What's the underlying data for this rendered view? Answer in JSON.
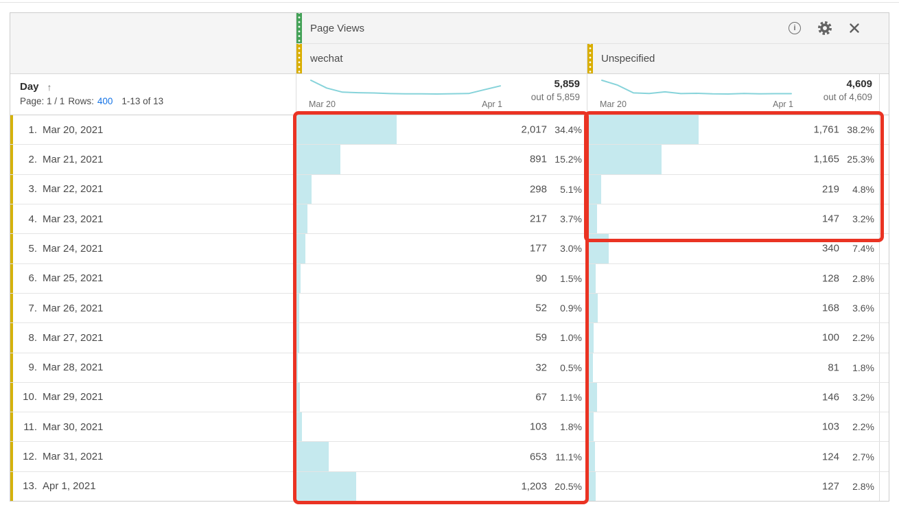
{
  "metric_header": {
    "label": "Page Views"
  },
  "toolbar": {
    "info_glyph": "i"
  },
  "dimension_header": {
    "label": "Day",
    "sort_glyph": "↑",
    "page_label": "Page: 1 / 1",
    "rows_label": "Rows:",
    "rows_value": "400",
    "range_label": "1-13 of 13"
  },
  "columns": [
    {
      "label": "wechat",
      "total": "5,859",
      "out_of_label": "out of 5,859",
      "axis_start": "Mar 20",
      "axis_end": "Apr 1",
      "spark_values": [
        2017,
        891,
        298,
        217,
        177,
        90,
        52,
        59,
        32,
        67,
        103,
        653,
        1203
      ]
    },
    {
      "label": "Unspecified",
      "total": "4,609",
      "out_of_label": "out of 4,609",
      "axis_start": "Mar 20",
      "axis_end": "Apr 1",
      "spark_values": [
        1761,
        1165,
        219,
        147,
        340,
        128,
        168,
        100,
        81,
        146,
        103,
        124,
        127
      ]
    }
  ],
  "rows": [
    {
      "rank": "1.",
      "day": "Mar 20, 2021",
      "cells": [
        {
          "value": "2,017",
          "pct": "34.4%",
          "pct_num": 34.4
        },
        {
          "value": "1,761",
          "pct": "38.2%",
          "pct_num": 38.2
        }
      ]
    },
    {
      "rank": "2.",
      "day": "Mar 21, 2021",
      "cells": [
        {
          "value": "891",
          "pct": "15.2%",
          "pct_num": 15.2
        },
        {
          "value": "1,165",
          "pct": "25.3%",
          "pct_num": 25.3
        }
      ]
    },
    {
      "rank": "3.",
      "day": "Mar 22, 2021",
      "cells": [
        {
          "value": "298",
          "pct": "5.1%",
          "pct_num": 5.1
        },
        {
          "value": "219",
          "pct": "4.8%",
          "pct_num": 4.8
        }
      ]
    },
    {
      "rank": "4.",
      "day": "Mar 23, 2021",
      "cells": [
        {
          "value": "217",
          "pct": "3.7%",
          "pct_num": 3.7
        },
        {
          "value": "147",
          "pct": "3.2%",
          "pct_num": 3.2
        }
      ]
    },
    {
      "rank": "5.",
      "day": "Mar 24, 2021",
      "cells": [
        {
          "value": "177",
          "pct": "3.0%",
          "pct_num": 3.0
        },
        {
          "value": "340",
          "pct": "7.4%",
          "pct_num": 7.4
        }
      ]
    },
    {
      "rank": "6.",
      "day": "Mar 25, 2021",
      "cells": [
        {
          "value": "90",
          "pct": "1.5%",
          "pct_num": 1.5
        },
        {
          "value": "128",
          "pct": "2.8%",
          "pct_num": 2.8
        }
      ]
    },
    {
      "rank": "7.",
      "day": "Mar 26, 2021",
      "cells": [
        {
          "value": "52",
          "pct": "0.9%",
          "pct_num": 0.9
        },
        {
          "value": "168",
          "pct": "3.6%",
          "pct_num": 3.6
        }
      ]
    },
    {
      "rank": "8.",
      "day": "Mar 27, 2021",
      "cells": [
        {
          "value": "59",
          "pct": "1.0%",
          "pct_num": 1.0
        },
        {
          "value": "100",
          "pct": "2.2%",
          "pct_num": 2.2
        }
      ]
    },
    {
      "rank": "9.",
      "day": "Mar 28, 2021",
      "cells": [
        {
          "value": "32",
          "pct": "0.5%",
          "pct_num": 0.5
        },
        {
          "value": "81",
          "pct": "1.8%",
          "pct_num": 1.8
        }
      ]
    },
    {
      "rank": "10.",
      "day": "Mar 29, 2021",
      "cells": [
        {
          "value": "67",
          "pct": "1.1%",
          "pct_num": 1.1
        },
        {
          "value": "146",
          "pct": "3.2%",
          "pct_num": 3.2
        }
      ]
    },
    {
      "rank": "11.",
      "day": "Mar 30, 2021",
      "cells": [
        {
          "value": "103",
          "pct": "1.8%",
          "pct_num": 1.8
        },
        {
          "value": "103",
          "pct": "2.2%",
          "pct_num": 2.2
        }
      ]
    },
    {
      "rank": "12.",
      "day": "Mar 31, 2021",
      "cells": [
        {
          "value": "653",
          "pct": "11.1%",
          "pct_num": 11.1
        },
        {
          "value": "124",
          "pct": "2.7%",
          "pct_num": 2.7
        }
      ]
    },
    {
      "rank": "13.",
      "day": "Apr 1, 2021",
      "cells": [
        {
          "value": "1,203",
          "pct": "20.5%",
          "pct_num": 20.5
        },
        {
          "value": "127",
          "pct": "2.8%",
          "pct_num": 2.8
        }
      ]
    }
  ],
  "colors": {
    "bar_fill": "#c5e9ee",
    "spark_line": "#86d3da",
    "accent_green": "#44a258",
    "accent_yellow": "#d9ae00",
    "row_stripe": "#d5b20c",
    "annotation_red": "#ea3323",
    "link_blue": "#1473e6"
  }
}
